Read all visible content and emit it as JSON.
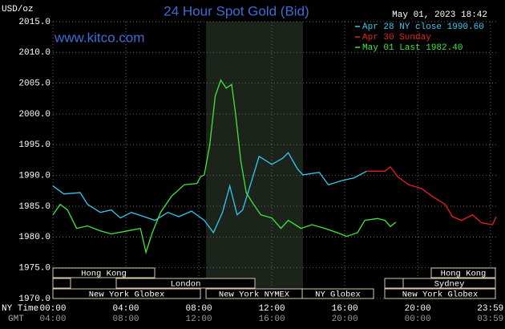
{
  "chart_data": {
    "type": "line",
    "title": "24 Hour Spot Gold (Bid)",
    "y_label": "USD/oz",
    "timestamp": "May 01, 2023 18:42",
    "site": "www.kitco.com",
    "x_label": "NY Time",
    "x2_label": "GMT",
    "xlim": [
      0,
      24.3
    ],
    "ylim": [
      1970,
      2015
    ],
    "grid": true,
    "xticks": [
      {
        "value": 0,
        "label": "00:00"
      },
      {
        "value": 4,
        "label": "04:00"
      },
      {
        "value": 8,
        "label": "08:00"
      },
      {
        "value": 12,
        "label": "12:00"
      },
      {
        "value": 16,
        "label": "16:00"
      },
      {
        "value": 20,
        "label": "20:00"
      },
      {
        "value": 23.983,
        "label": "23:59"
      }
    ],
    "x2ticks": [
      {
        "value": 0,
        "label": "04:00"
      },
      {
        "value": 4,
        "label": "08:00"
      },
      {
        "value": 8,
        "label": "12:00"
      },
      {
        "value": 12,
        "label": "16:00"
      },
      {
        "value": 16,
        "label": "20:00"
      },
      {
        "value": 20,
        "label": "00:00"
      },
      {
        "value": 23.983,
        "label": "03:59"
      }
    ],
    "yticks": [
      {
        "value": 1970,
        "label": "1970.0"
      },
      {
        "value": 1975,
        "label": "1975.0"
      },
      {
        "value": 1980,
        "label": "1980.0"
      },
      {
        "value": 1985,
        "label": "1985.0"
      },
      {
        "value": 1990,
        "label": "1990.0"
      },
      {
        "value": 1995,
        "label": "1995.0"
      },
      {
        "value": 2000,
        "label": "2000.0"
      },
      {
        "value": 2005,
        "label": "2005.0"
      },
      {
        "value": 2010,
        "label": "2010.0"
      },
      {
        "value": 2015,
        "label": "2015.0"
      }
    ],
    "sessions": [
      "Hong Kong",
      "London",
      "New York Globex",
      "New York NYMEX",
      "NY Globex",
      "Hong Kong",
      "Sydney",
      "New York Globex"
    ],
    "series": [
      {
        "name": "Apr 28 NY close 1990.60",
        "color": "#35c8ef",
        "x": [
          0,
          0.6,
          1.5,
          1.9,
          2.6,
          3.2,
          3.7,
          4.3,
          5.0,
          5.6,
          6.3,
          6.9,
          7.6,
          8.3,
          8.8,
          9.3,
          9.7,
          10.1,
          10.4,
          10.9,
          11.3,
          12.0,
          12.6,
          12.9,
          13.4,
          13.7,
          14.6,
          15.1,
          15.9,
          16.5,
          17.2
        ],
        "values": [
          1988.3,
          1987.0,
          1987.2,
          1985.3,
          1984.0,
          1984.4,
          1983.1,
          1984.0,
          1983.3,
          1982.7,
          1984.0,
          1983.3,
          1984.2,
          1982.7,
          1980.7,
          1984.0,
          1988.3,
          1983.6,
          1984.4,
          1989.2,
          1993.1,
          1991.8,
          1992.8,
          1993.7,
          1991.1,
          1990.1,
          1990.5,
          1988.5,
          1989.2,
          1989.6,
          1990.7
        ]
      },
      {
        "name": "Apr 30 Sunday",
        "color": "#e8201e",
        "x": [
          17.2,
          18.2,
          18.5,
          18.9,
          19.5,
          20.2,
          20.8,
          21.5,
          21.9,
          22.4,
          23.0,
          23.5,
          24.1,
          24.3
        ],
        "values": [
          1990.7,
          1990.7,
          1991.4,
          1989.8,
          1988.5,
          1987.9,
          1986.6,
          1985.3,
          1983.3,
          1982.7,
          1983.6,
          1982.3,
          1982.0,
          1983.3
        ]
      },
      {
        "name": "May 01 Last 1982.40",
        "color": "#3ee83a",
        "x": [
          0,
          0.4,
          0.8,
          1.3,
          1.9,
          2.6,
          3.2,
          4.1,
          4.8,
          5.0,
          5.1,
          5.45,
          5.9,
          6.5,
          7.2,
          7.9,
          8.1,
          8.3,
          8.6,
          8.9,
          9.2,
          9.5,
          9.8,
          10.0,
          10.3,
          10.6,
          11.0,
          11.4,
          12.0,
          12.5,
          12.9,
          13.6,
          14.2,
          14.9,
          15.6,
          16.1,
          16.7,
          17.1,
          17.8,
          18.2,
          18.5,
          18.8
        ],
        "values": [
          1983.6,
          1985.3,
          1984.4,
          1981.4,
          1981.8,
          1981.0,
          1980.5,
          1981.0,
          1981.4,
          1978.8,
          1977.5,
          1980.7,
          1984.0,
          1986.6,
          1988.5,
          1988.7,
          1989.8,
          1990.1,
          1995.0,
          2002.9,
          2005.5,
          2004.2,
          2004.8,
          2000.3,
          1992.4,
          1987.2,
          1985.3,
          1983.6,
          1983.1,
          1981.4,
          1982.7,
          1981.4,
          1982.0,
          1981.4,
          1980.7,
          1980.1,
          1980.7,
          1982.7,
          1983.0,
          1982.7,
          1981.7,
          1982.4
        ]
      }
    ]
  }
}
